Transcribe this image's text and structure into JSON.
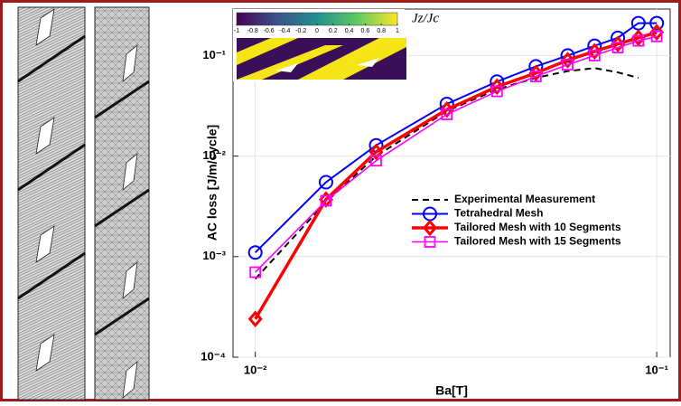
{
  "chart_data": {
    "type": "line",
    "xlabel": "Ba[T]",
    "ylabel": "AC loss [J/m/cycle]",
    "log_x": true,
    "log_y": true,
    "grid": true,
    "legend_position": "lower-right",
    "x": [
      0.01,
      0.015,
      0.02,
      0.03,
      0.04,
      0.05,
      0.06,
      0.07,
      0.08,
      0.09,
      0.1
    ],
    "xlim": [
      0.0088,
      0.108
    ],
    "ylim": [
      0.0001,
      0.29
    ],
    "xticks": [
      {
        "value": 0.01,
        "label": "10⁻²"
      },
      {
        "value": 0.1,
        "label": "10⁻¹"
      }
    ],
    "yticks": [
      {
        "value": 0.0001,
        "label": "10⁻⁴"
      },
      {
        "value": 0.001,
        "label": "10⁻³"
      },
      {
        "value": 0.01,
        "label": "10⁻²"
      },
      {
        "value": 0.1,
        "label": "10⁻¹"
      }
    ],
    "series": [
      {
        "name": "Experimental Measurement",
        "color": "#000000",
        "style": "dashed",
        "marker": "none",
        "values": [
          0.0006,
          0.0035,
          0.01,
          0.028,
          0.046,
          0.06,
          0.07,
          0.075,
          0.068,
          0.06,
          null
        ]
      },
      {
        "name": "Tetrahedral Mesh",
        "color": "#0000ff",
        "style": "solid",
        "marker": "circle",
        "values": [
          0.0011,
          0.0055,
          0.0128,
          0.033,
          0.055,
          0.078,
          0.1,
          0.125,
          0.15,
          0.21,
          0.21
        ]
      },
      {
        "name": "Tailored Mesh with 10 Segments",
        "color": "#ff0000",
        "style": "solid",
        "marker": "diamond",
        "values": [
          0.00024,
          0.0037,
          0.011,
          0.029,
          0.049,
          0.067,
          0.09,
          0.11,
          0.13,
          0.15,
          0.17
        ]
      },
      {
        "name": "Tailored Mesh with 15 Segments",
        "color": "#ff00ff",
        "style": "solid",
        "marker": "square",
        "values": [
          0.0007,
          0.0036,
          0.009,
          0.026,
          0.044,
          0.062,
          0.081,
          0.1,
          0.12,
          0.14,
          0.155
        ]
      }
    ],
    "colorbar": {
      "label": "Jz/Jc",
      "ticks": [
        -1,
        -0.8,
        -0.6,
        -0.4,
        -0.2,
        0,
        0.2,
        0.4,
        0.6,
        0.8,
        1
      ]
    }
  }
}
